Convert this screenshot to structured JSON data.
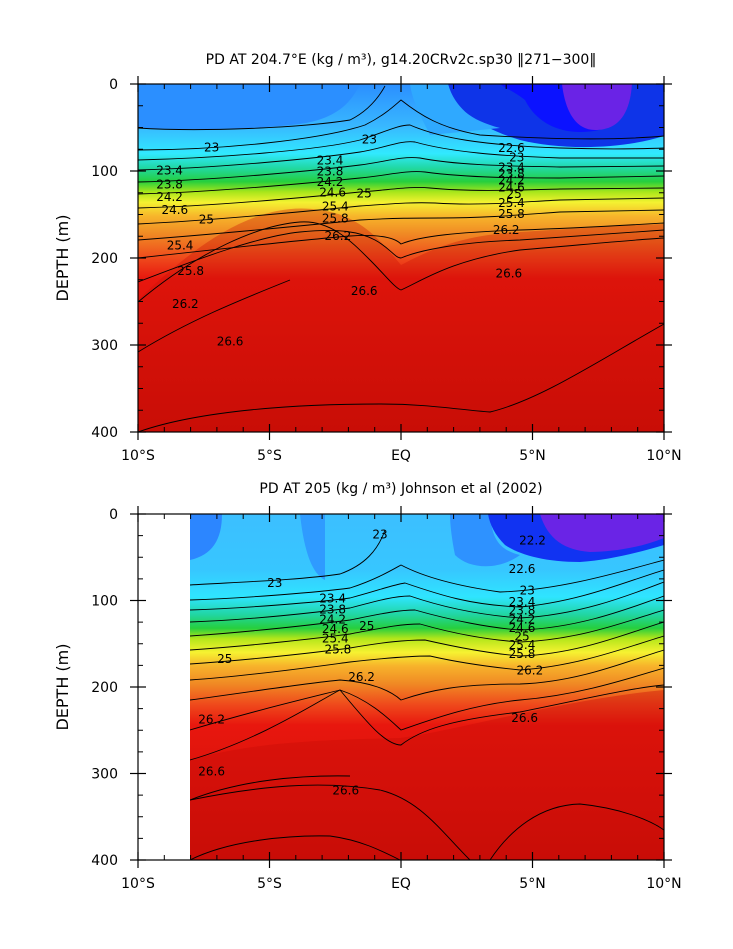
{
  "chart_data": [
    {
      "type": "heatmap",
      "title": "PD AT 204.7°E (kg / m³), g14.20CRv2c.sp30  ‖271−300‖",
      "xlabel": "",
      "ylabel": "DEPTH (m)",
      "xlim": [
        -10,
        10
      ],
      "ylim": [
        400,
        0
      ],
      "x_tick_labels": [
        "10°S",
        "5°S",
        "EQ",
        "5°N",
        "10°N"
      ],
      "y_tick_labels": [
        "0",
        "100",
        "200",
        "300",
        "400"
      ],
      "data_x_start": -10,
      "contour_labels": [
        {
          "text": "23",
          "x": -7.2,
          "y": 75
        },
        {
          "text": "23",
          "x": -1.2,
          "y": 66
        },
        {
          "text": "23.4",
          "x": -8.8,
          "y": 102
        },
        {
          "text": "23.8",
          "x": -8.8,
          "y": 118
        },
        {
          "text": "24.2",
          "x": -8.8,
          "y": 132
        },
        {
          "text": "24.6",
          "x": -8.6,
          "y": 147
        },
        {
          "text": "25",
          "x": -7.4,
          "y": 158
        },
        {
          "text": "25.4",
          "x": -8.4,
          "y": 188
        },
        {
          "text": "25.8",
          "x": -8.0,
          "y": 217
        },
        {
          "text": "26.2",
          "x": -8.2,
          "y": 255
        },
        {
          "text": "26.6",
          "x": -6.5,
          "y": 298
        },
        {
          "text": "23.4",
          "x": -2.7,
          "y": 90
        },
        {
          "text": "23.8",
          "x": -2.7,
          "y": 103
        },
        {
          "text": "24.2",
          "x": -2.7,
          "y": 115
        },
        {
          "text": "24.6",
          "x": -2.6,
          "y": 127
        },
        {
          "text": "25",
          "x": -1.4,
          "y": 128
        },
        {
          "text": "25.4",
          "x": -2.5,
          "y": 143
        },
        {
          "text": "25.8",
          "x": -2.5,
          "y": 157
        },
        {
          "text": "26.2",
          "x": -2.4,
          "y": 177
        },
        {
          "text": "26.6",
          "x": -1.4,
          "y": 240
        },
        {
          "text": "22.6",
          "x": 4.2,
          "y": 76
        },
        {
          "text": "23",
          "x": 4.4,
          "y": 87
        },
        {
          "text": "23.4",
          "x": 4.2,
          "y": 98
        },
        {
          "text": "23.8",
          "x": 4.2,
          "y": 106
        },
        {
          "text": "24.2",
          "x": 4.2,
          "y": 113
        },
        {
          "text": "24.6",
          "x": 4.2,
          "y": 121
        },
        {
          "text": "25",
          "x": 4.3,
          "y": 129
        },
        {
          "text": "25.4",
          "x": 4.2,
          "y": 139
        },
        {
          "text": "25.8",
          "x": 4.2,
          "y": 152
        },
        {
          "text": "26.2",
          "x": 4.0,
          "y": 170
        },
        {
          "text": "26.6",
          "x": 4.1,
          "y": 220
        }
      ]
    },
    {
      "type": "heatmap",
      "title": "PD AT 205 (kg / m³) Johnson et al (2002)",
      "xlabel": "",
      "ylabel": "DEPTH (m)",
      "xlim": [
        -10,
        10
      ],
      "ylim": [
        400,
        0
      ],
      "x_tick_labels": [
        "10°S",
        "5°S",
        "EQ",
        "5°N",
        "10°N"
      ],
      "y_tick_labels": [
        "0",
        "100",
        "200",
        "300",
        "400"
      ],
      "data_x_start": -8,
      "contour_labels": [
        {
          "text": "23",
          "x": -4.8,
          "y": 82
        },
        {
          "text": "23",
          "x": -0.8,
          "y": 26
        },
        {
          "text": "23.4",
          "x": -2.6,
          "y": 100
        },
        {
          "text": "23.8",
          "x": -2.6,
          "y": 113
        },
        {
          "text": "24.2",
          "x": -2.6,
          "y": 124
        },
        {
          "text": "24.6",
          "x": -2.5,
          "y": 135
        },
        {
          "text": "25",
          "x": -1.3,
          "y": 132
        },
        {
          "text": "25.4",
          "x": -2.5,
          "y": 146
        },
        {
          "text": "25.8",
          "x": -2.4,
          "y": 159
        },
        {
          "text": "26.2",
          "x": -1.5,
          "y": 191
        },
        {
          "text": "25",
          "x": -6.7,
          "y": 170
        },
        {
          "text": "26.2",
          "x": -7.2,
          "y": 240
        },
        {
          "text": "26.6",
          "x": -7.2,
          "y": 300
        },
        {
          "text": "26.6",
          "x": -2.1,
          "y": 322
        },
        {
          "text": "22.2",
          "x": 5.0,
          "y": 33
        },
        {
          "text": "22.6",
          "x": 4.6,
          "y": 66
        },
        {
          "text": "23",
          "x": 4.8,
          "y": 91
        },
        {
          "text": "23.4",
          "x": 4.6,
          "y": 104
        },
        {
          "text": "23.8",
          "x": 4.6,
          "y": 114
        },
        {
          "text": "24.2",
          "x": 4.6,
          "y": 124
        },
        {
          "text": "24.6",
          "x": 4.6,
          "y": 134
        },
        {
          "text": "25",
          "x": 4.6,
          "y": 144
        },
        {
          "text": "25.4",
          "x": 4.6,
          "y": 154
        },
        {
          "text": "25.8",
          "x": 4.6,
          "y": 164
        },
        {
          "text": "26.2",
          "x": 4.9,
          "y": 183
        },
        {
          "text": "26.6",
          "x": 4.7,
          "y": 238
        }
      ]
    }
  ]
}
